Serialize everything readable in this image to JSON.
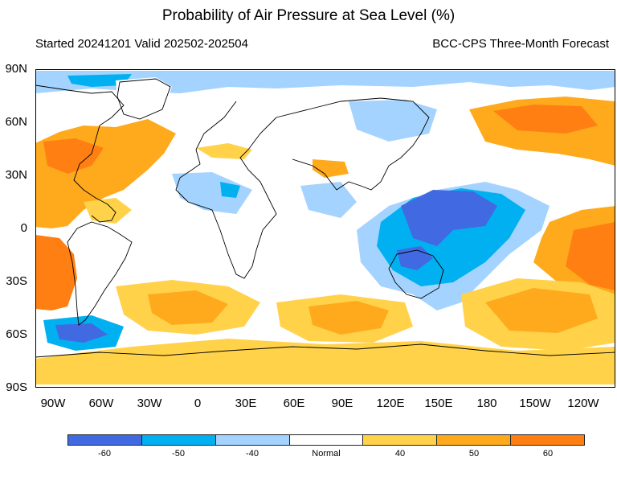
{
  "title": "Probability of Air Pressure at Sea Level (%)",
  "subtitle_left": "Started 20241201  Valid 202502-202504",
  "subtitle_right": "BCC-CPS Three-Month Forecast",
  "lat_labels": [
    "90N",
    "60N",
    "30N",
    "0",
    "30S",
    "60S",
    "90S"
  ],
  "lon_labels": [
    "90W",
    "60W",
    "30W",
    "0",
    "30E",
    "60E",
    "90E",
    "120E",
    "150E",
    "180",
    "150W",
    "120W"
  ],
  "colorbar": {
    "colors": [
      "#4169e1",
      "#00b0f0",
      "#a4d3ff",
      "#ffffff",
      "#ffd24a",
      "#ffaa1c",
      "#ff7f12"
    ],
    "labels": [
      "-60",
      "-50",
      "-40",
      "Normal",
      "40",
      "50",
      "60"
    ]
  },
  "colors": {
    "land_outline": "#000000",
    "background": "#ffffff"
  }
}
